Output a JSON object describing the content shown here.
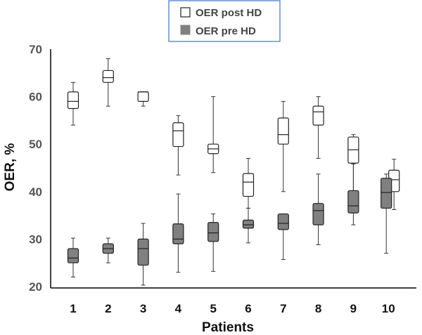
{
  "chart_data": {
    "type": "box",
    "xlabel": "Patients",
    "ylabel": "OER, %",
    "ylim": [
      20,
      70
    ],
    "yticks": [
      20,
      30,
      40,
      50,
      60,
      70
    ],
    "categories": [
      "1",
      "2",
      "3",
      "4",
      "5",
      "6",
      "7",
      "8",
      "9",
      "10"
    ],
    "legend": {
      "placement": "top-center",
      "post_label": "OER post HD",
      "pre_label": "OER pre HD"
    },
    "colors": {
      "post": "#ffffff",
      "pre": "#808080",
      "line": "#333333",
      "legend_border": "#4472c4"
    },
    "series": [
      {
        "name": "OER post HD",
        "key": "post",
        "boxes": [
          {
            "min": 54,
            "q1": 57.5,
            "median": 59,
            "q3": 61,
            "max": 63
          },
          {
            "min": 58,
            "q1": 63,
            "median": 64,
            "q3": 65.5,
            "max": 68
          },
          {
            "min": 58,
            "q1": 59,
            "median": 61,
            "q3": 61,
            "max": 61
          },
          {
            "min": 43.5,
            "q1": 49.5,
            "median": 52.8,
            "q3": 54.5,
            "max": 56
          },
          {
            "min": 44,
            "q1": 48,
            "median": 49,
            "q3": 50,
            "max": 60
          },
          {
            "min": 36.5,
            "q1": 39,
            "median": 42,
            "q3": 43.8,
            "max": 47
          },
          {
            "min": 40,
            "q1": 50,
            "median": 52,
            "q3": 55.5,
            "max": 59
          },
          {
            "min": 47,
            "q1": 54,
            "median": 56.8,
            "q3": 58,
            "max": 60
          },
          {
            "min": 40,
            "q1": 46,
            "median": 48.8,
            "q3": 51.5,
            "max": 52
          },
          {
            "min": 36.2,
            "q1": 40,
            "median": 42.5,
            "q3": 44.5,
            "max": 46.8
          }
        ]
      },
      {
        "name": "OER pre HD",
        "key": "pre",
        "boxes": [
          {
            "min": 22,
            "q1": 25,
            "median": 26,
            "q3": 28,
            "max": 30.2
          },
          {
            "min": 25,
            "q1": 27,
            "median": 28,
            "q3": 29,
            "max": 30.2
          },
          {
            "min": 20.3,
            "q1": 24.5,
            "median": 28,
            "q3": 30,
            "max": 33.3
          },
          {
            "min": 23,
            "q1": 29,
            "median": 30,
            "q3": 33.2,
            "max": 39.5
          },
          {
            "min": 23.2,
            "q1": 29.5,
            "median": 31.3,
            "q3": 33.5,
            "max": 35.3
          },
          {
            "min": 29.2,
            "q1": 32.3,
            "median": 33,
            "q3": 34,
            "max": 36.5
          },
          {
            "min": 25.7,
            "q1": 32,
            "median": 33.3,
            "q3": 35.3,
            "max": 35.3
          },
          {
            "min": 28.8,
            "q1": 33,
            "median": 36,
            "q3": 37.5,
            "max": 43.7
          },
          {
            "min": 33,
            "q1": 35.5,
            "median": 37,
            "q3": 40.2,
            "max": 45.8
          },
          {
            "min": 27,
            "q1": 36.5,
            "median": 39.8,
            "q3": 42.8,
            "max": 43.7
          }
        ]
      }
    ]
  }
}
